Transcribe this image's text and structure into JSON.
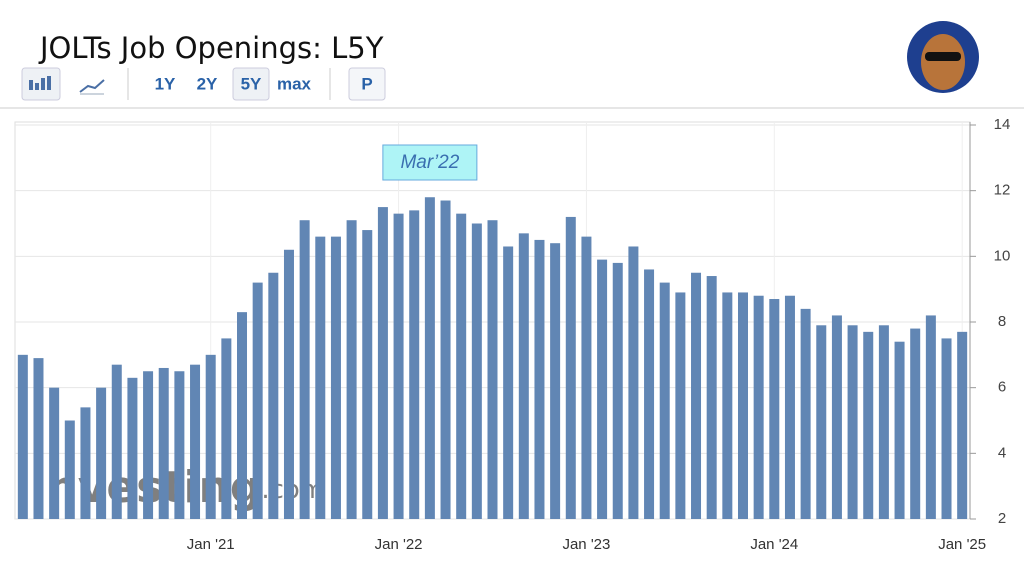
{
  "header": {
    "title": "JOLTs Job Openings: L5Y",
    "buttons": [
      "1Y",
      "2Y",
      "5Y",
      "max",
      "P"
    ],
    "active_button": 2
  },
  "watermark": {
    "brand": "Investing",
    "suffix": ".com"
  },
  "chart_data": {
    "type": "bar",
    "color": "#6186b4",
    "annotation": "Mar’22",
    "annotation_index": 26,
    "categories": [
      null,
      null,
      null,
      null,
      null,
      null,
      null,
      null,
      null,
      null,
      null,
      null,
      "Jan '21",
      null,
      null,
      null,
      null,
      null,
      null,
      null,
      null,
      null,
      null,
      null,
      "Jan '22",
      null,
      null,
      null,
      null,
      null,
      null,
      null,
      null,
      null,
      null,
      null,
      "Jan '23",
      null,
      null,
      null,
      null,
      null,
      null,
      null,
      null,
      null,
      null,
      null,
      "Jan '24",
      null,
      null,
      null,
      null,
      null,
      null,
      null,
      null,
      null,
      null,
      null,
      "Jan '25"
    ],
    "values": [
      7.0,
      6.9,
      6.0,
      5.0,
      5.4,
      6.0,
      6.7,
      6.3,
      6.5,
      6.6,
      6.5,
      6.7,
      7.0,
      7.5,
      8.3,
      9.2,
      9.5,
      10.2,
      11.1,
      10.6,
      10.6,
      11.1,
      10.8,
      11.5,
      11.3,
      11.4,
      11.8,
      11.7,
      11.3,
      11.0,
      11.1,
      10.3,
      10.7,
      10.5,
      10.4,
      11.2,
      10.6,
      9.9,
      9.8,
      10.3,
      9.6,
      9.2,
      8.9,
      9.5,
      9.4,
      8.9,
      8.9,
      8.8,
      8.7,
      8.8,
      8.4,
      7.9,
      8.2,
      7.9,
      7.7,
      7.9,
      7.4,
      7.8,
      8.2,
      7.5,
      7.7
    ],
    "ylim": [
      2,
      14
    ],
    "yticks": [
      2,
      4,
      6,
      8,
      10,
      12,
      14
    ],
    "grid": true
  }
}
